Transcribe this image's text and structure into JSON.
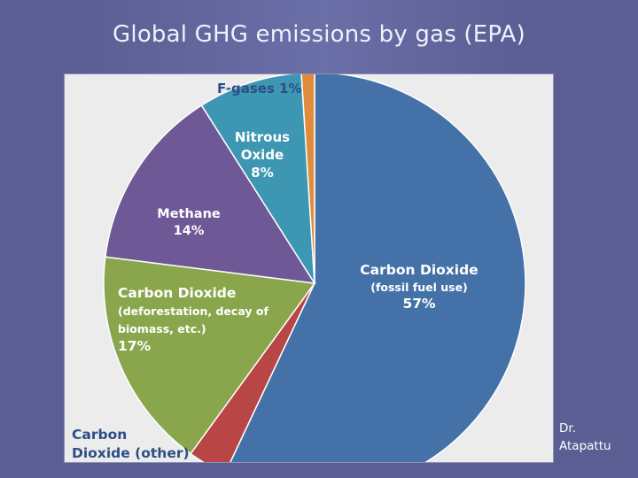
{
  "slide": {
    "title": "Global GHG emissions by gas (EPA)",
    "author_line1": "Dr.",
    "author_line2": "Atapattu"
  },
  "chart_data": {
    "type": "pie",
    "title": "",
    "slices": [
      {
        "label_lines": [
          "Carbon Dioxide",
          "(fossil fuel use)",
          "57%"
        ],
        "value": 57,
        "color": "#4472a8",
        "label_color": "#ffffff"
      },
      {
        "label_lines": [
          "Carbon Dioxide (other)"
        ],
        "value": 3,
        "color": "#b84644",
        "label_color": "#2c4e86"
      },
      {
        "label_lines": [
          "Carbon Dioxide",
          "(deforestation, decay of",
          "biomass, etc.)",
          "17%"
        ],
        "value": 17,
        "color": "#8aa64c",
        "label_color": "#ffffff"
      },
      {
        "label_lines": [
          "Methane",
          "14%"
        ],
        "value": 14,
        "color": "#6e5896",
        "label_color": "#ffffff"
      },
      {
        "label_lines": [
          "Nitrous",
          "Oxide",
          "8%"
        ],
        "value": 8,
        "color": "#3e97b2",
        "label_color": "#ffffff"
      },
      {
        "label_lines": [
          "F-gases 1%"
        ],
        "value": 1,
        "color": "#e08c3c",
        "label_color": "#2c4e86"
      }
    ]
  }
}
